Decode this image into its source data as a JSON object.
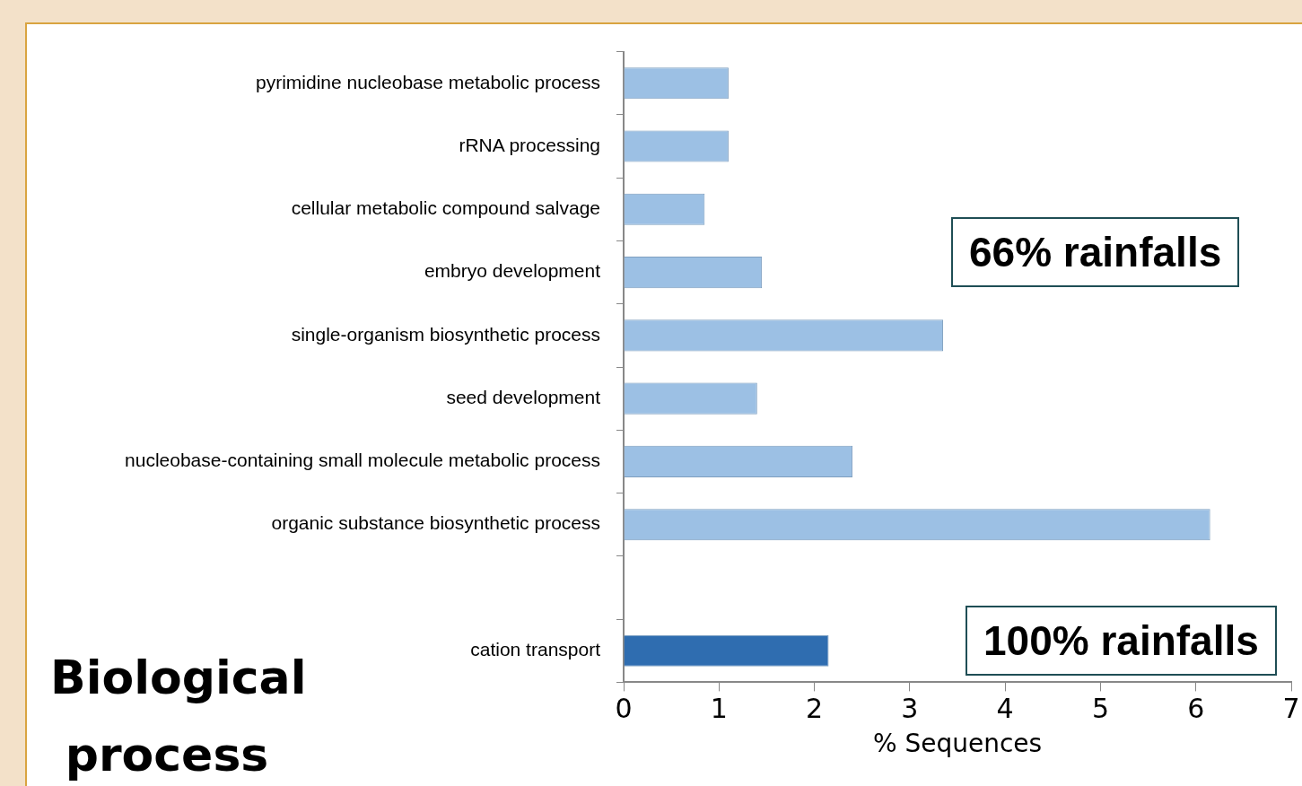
{
  "chart_data": {
    "type": "bar",
    "orientation": "horizontal",
    "title": "Biological process",
    "xlabel": "% Sequences",
    "categories": [
      "pyrimidine nucleobase metabolic process",
      "rRNA processing",
      "cellular metabolic compound salvage",
      "embryo development",
      "single-organism biosynthetic process",
      "seed development",
      "nucleobase-containing small molecule metabolic process",
      "organic substance biosynthetic process",
      null,
      "cation transport"
    ],
    "values": [
      1.1,
      1.1,
      0.85,
      1.45,
      3.35,
      1.4,
      2.4,
      6.15,
      null,
      2.15
    ],
    "colors": [
      "#9cc0e4",
      "#9cc0e4",
      "#9cc0e4",
      "#9cc0e4",
      "#9cc0e4",
      "#9cc0e4",
      "#9cc0e4",
      "#9cc0e4",
      "#9cc0e4",
      "#2f6db0"
    ],
    "xlim": [
      0,
      7
    ],
    "xticks": [
      0,
      1,
      2,
      3,
      4,
      5,
      6,
      7
    ],
    "grid": false,
    "legend": false,
    "annotations": [
      "66% rainfalls",
      "100% rainfalls"
    ]
  }
}
